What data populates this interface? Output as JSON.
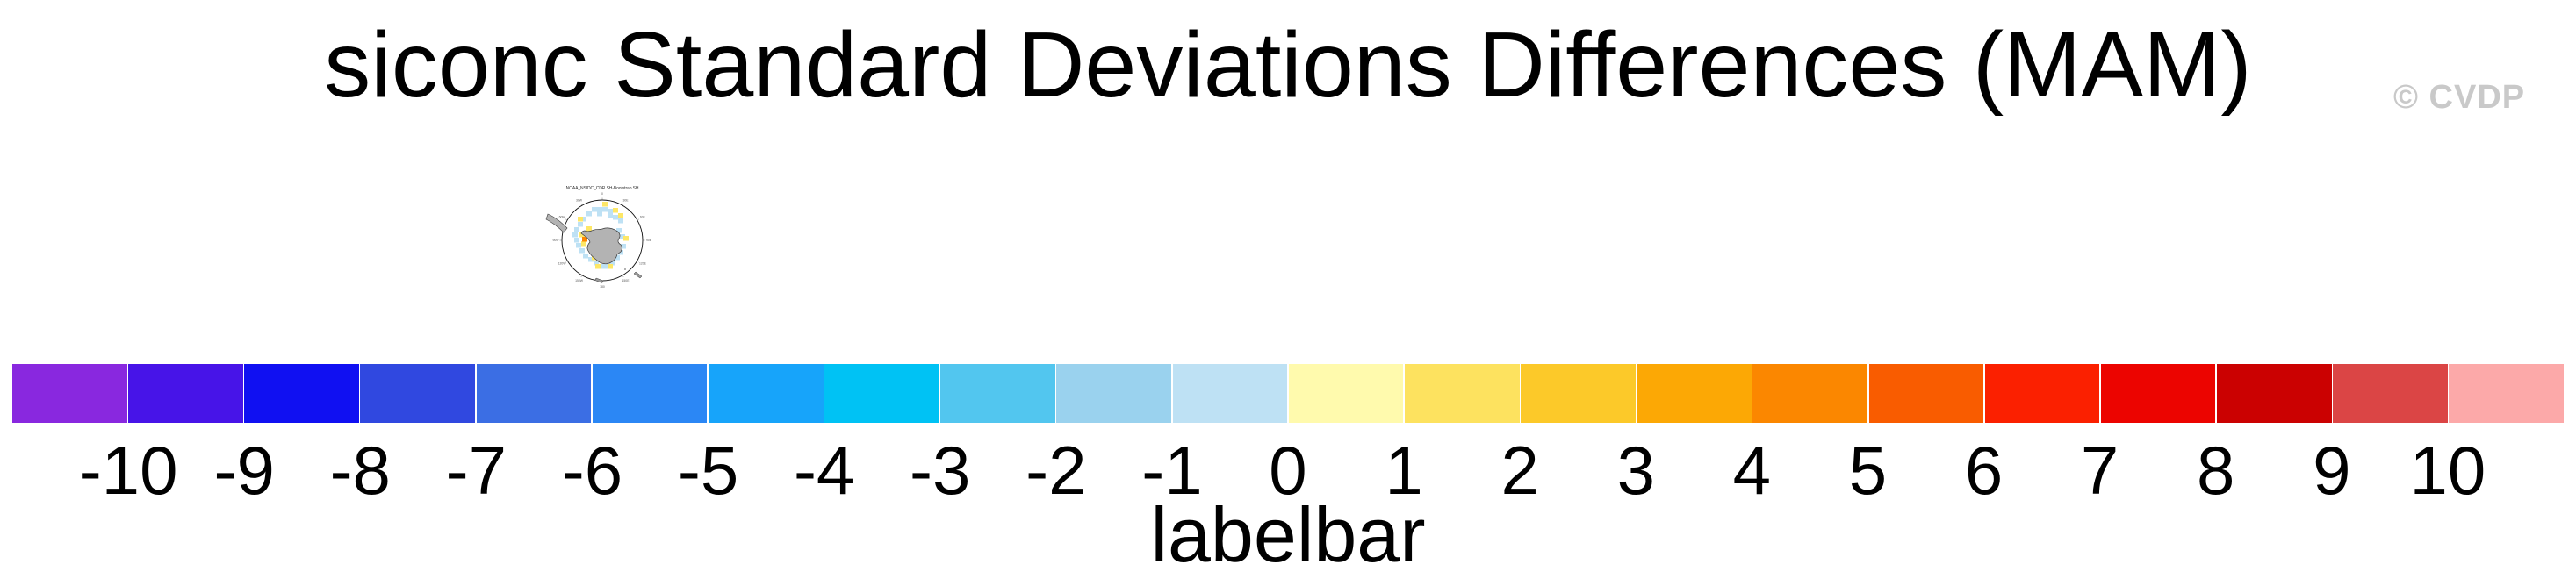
{
  "header": {
    "title": "siconc Standard Deviations Differences (MAM)",
    "watermark": "© CVDP"
  },
  "map": {
    "title": "NOAA_NSIDC_CDR SH-Bootstrap SH",
    "projection": "south polar stereographic",
    "ring_labels": [
      "0",
      "30E",
      "60E",
      "90E",
      "120E",
      "150E",
      "180",
      "150W",
      "120W",
      "90W",
      "60W",
      "30W"
    ],
    "cell_colors": {
      "lightblue": "#BEE1F4",
      "yellow": "#FDE767",
      "orange": "#FB8700"
    },
    "cells": {
      "lightblue": [
        [
          83,
          33
        ],
        [
          89,
          33
        ],
        [
          95,
          33
        ],
        [
          101,
          35
        ],
        [
          77,
          38
        ],
        [
          89,
          38
        ],
        [
          101,
          40
        ],
        [
          107,
          42
        ],
        [
          113,
          46
        ],
        [
          71,
          44
        ],
        [
          67,
          50
        ],
        [
          63,
          56
        ],
        [
          61,
          62
        ],
        [
          63,
          68
        ],
        [
          65,
          74
        ],
        [
          69,
          80
        ],
        [
          73,
          86
        ],
        [
          79,
          90
        ],
        [
          85,
          94
        ],
        [
          91,
          98
        ],
        [
          97,
          98
        ],
        [
          103,
          94
        ],
        [
          109,
          88
        ],
        [
          113,
          82
        ],
        [
          116,
          75
        ],
        [
          115,
          64
        ],
        [
          111,
          57
        ],
        [
          75,
          60
        ]
      ],
      "yellow": [
        [
          95,
          27
        ],
        [
          107,
          34
        ],
        [
          113,
          40
        ],
        [
          119,
          66
        ],
        [
          101,
          98
        ],
        [
          87,
          98
        ],
        [
          67,
          44
        ],
        [
          69,
          62
        ],
        [
          71,
          72
        ],
        [
          77,
          55
        ],
        [
          83,
          88
        ]
      ],
      "orange": [
        [
          72,
          67
        ]
      ]
    }
  },
  "chart_data": {
    "type": "heatmap",
    "title": "siconc Standard Deviations Differences (MAM)",
    "variable": "siconc",
    "season": "MAM",
    "panels": [
      {
        "name": "NOAA_NSIDC_CDR SH-Bootstrap SH",
        "projection": "south polar stereographic",
        "region": "Antarctica / Southern Hemisphere sea ice"
      }
    ],
    "colorbar": {
      "label": "labelbar",
      "range": [
        -10,
        10
      ],
      "tick_labels": [
        "-10",
        "-9",
        "-8",
        "-7",
        "-6",
        "-5",
        "-4",
        "-3",
        "-2",
        "-1",
        "0",
        "1",
        "2",
        "3",
        "4",
        "5",
        "6",
        "7",
        "8",
        "9",
        "10"
      ],
      "colors": [
        "#8928DF",
        "#4714E8",
        "#1010F2",
        "#3048E0",
        "#3B6EE4",
        "#2B87F5",
        "#17A4FA",
        "#00C2F4",
        "#52C6EF",
        "#9AD2EE",
        "#BEE1F4",
        "#FFFAAD",
        "#FDE25F",
        "#FCC929",
        "#FCA805",
        "#FB8700",
        "#F95C00",
        "#FB2000",
        "#EC0400",
        "#CB0101",
        "#DB4545",
        "#FCA9A9"
      ],
      "legend_position": "bottom",
      "grid": false
    }
  }
}
